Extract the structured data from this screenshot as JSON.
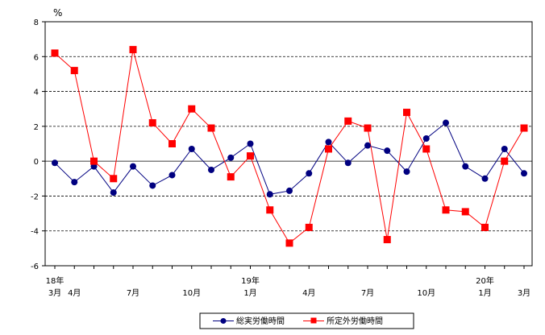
{
  "chart_data": {
    "type": "line",
    "unit": "%",
    "ylim": [
      -6,
      8
    ],
    "yticks": [
      "8",
      "6",
      "4",
      "2",
      "0",
      "-2",
      "-4",
      "-6"
    ],
    "grid": "horizontal dashed",
    "x_labels": [
      {
        "index": 0,
        "top": "18年",
        "bottom": "3月"
      },
      {
        "index": 1,
        "top": "",
        "bottom": "4月"
      },
      {
        "index": 4,
        "top": "",
        "bottom": "7月"
      },
      {
        "index": 7,
        "top": "",
        "bottom": "10月"
      },
      {
        "index": 10,
        "top": "19年",
        "bottom": "1月"
      },
      {
        "index": 13,
        "top": "",
        "bottom": "4月"
      },
      {
        "index": 16,
        "top": "",
        "bottom": "7月"
      },
      {
        "index": 19,
        "top": "",
        "bottom": "10月"
      },
      {
        "index": 22,
        "top": "20年",
        "bottom": "1月"
      },
      {
        "index": 24,
        "top": "",
        "bottom": "3月"
      }
    ],
    "series": [
      {
        "name": "総実労働時間",
        "color": "#000080",
        "marker": "circle",
        "values": [
          -0.1,
          -1.2,
          -0.3,
          -1.8,
          -0.3,
          -1.4,
          -0.8,
          0.7,
          -0.5,
          0.2,
          1.0,
          -1.9,
          -1.7,
          -0.7,
          1.1,
          -0.1,
          0.9,
          0.6,
          -0.6,
          1.3,
          2.2,
          -0.3,
          -1.0,
          0.7,
          -0.7
        ]
      },
      {
        "name": "所定外労働時間",
        "color": "#ff0000",
        "marker": "square",
        "values": [
          6.2,
          5.2,
          0.0,
          -1.0,
          6.4,
          2.2,
          1.0,
          3.0,
          1.9,
          -0.9,
          0.3,
          -2.8,
          -4.7,
          -3.8,
          0.7,
          2.3,
          1.9,
          -4.5,
          2.8,
          0.7,
          -2.8,
          -2.9,
          -3.8,
          0.0,
          1.9
        ]
      }
    ],
    "legend_position": "bottom-center"
  }
}
